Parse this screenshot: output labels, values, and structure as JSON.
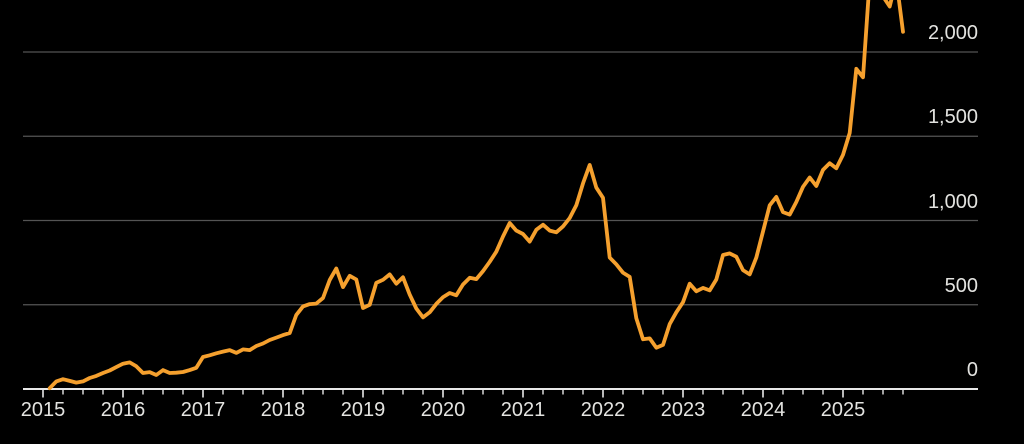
{
  "chart_data": {
    "type": "line",
    "title": "",
    "xlabel": "",
    "ylabel": "",
    "grid": "horizontal",
    "legend": "none",
    "axis_side": "right",
    "ylim": [
      0,
      2310
    ],
    "colors": {
      "background": "#000000",
      "line": "#f5a02e",
      "gridline": "#545454",
      "axis": "#e8e8e8",
      "text": "#e3e3e0"
    },
    "x_axis": {
      "year_labels": [
        "2015",
        "2016",
        "2017",
        "2018",
        "2019",
        "2020",
        "2021",
        "2022",
        "2023",
        "2024",
        "2025"
      ],
      "minor_ticks": "quarterly"
    },
    "y_axis": {
      "ticks": [
        {
          "value": 0,
          "label": "0"
        },
        {
          "value": 500,
          "label": "500"
        },
        {
          "value": 1000,
          "label": "1,000"
        },
        {
          "value": 1500,
          "label": "1,500"
        },
        {
          "value": 2000,
          "label": "2,000"
        }
      ]
    },
    "series": [
      {
        "name": "value",
        "points": [
          [
            "2015-02",
            5
          ],
          [
            "2015-03",
            45
          ],
          [
            "2015-04",
            58
          ],
          [
            "2015-05",
            48
          ],
          [
            "2015-06",
            38
          ],
          [
            "2015-07",
            45
          ],
          [
            "2015-08",
            65
          ],
          [
            "2015-09",
            78
          ],
          [
            "2015-10",
            95
          ],
          [
            "2015-11",
            110
          ],
          [
            "2015-12",
            130
          ],
          [
            "2016-01",
            150
          ],
          [
            "2016-02",
            158
          ],
          [
            "2016-03",
            135
          ],
          [
            "2016-04",
            95
          ],
          [
            "2016-05",
            100
          ],
          [
            "2016-06",
            83
          ],
          [
            "2016-07",
            112
          ],
          [
            "2016-08",
            95
          ],
          [
            "2016-09",
            97
          ],
          [
            "2016-10",
            101
          ],
          [
            "2016-11",
            112
          ],
          [
            "2016-12",
            126
          ],
          [
            "2017-01",
            190
          ],
          [
            "2017-02",
            200
          ],
          [
            "2017-03",
            212
          ],
          [
            "2017-04",
            222
          ],
          [
            "2017-05",
            231
          ],
          [
            "2017-06",
            214
          ],
          [
            "2017-07",
            235
          ],
          [
            "2017-08",
            231
          ],
          [
            "2017-09",
            255
          ],
          [
            "2017-10",
            270
          ],
          [
            "2017-11",
            291
          ],
          [
            "2017-12",
            305
          ],
          [
            "2018-01",
            320
          ],
          [
            "2018-02",
            332
          ],
          [
            "2018-03",
            440
          ],
          [
            "2018-04",
            490
          ],
          [
            "2018-05",
            504
          ],
          [
            "2018-06",
            507
          ],
          [
            "2018-07",
            540
          ],
          [
            "2018-08",
            647
          ],
          [
            "2018-09",
            715
          ],
          [
            "2018-10",
            605
          ],
          [
            "2018-11",
            672
          ],
          [
            "2018-12",
            650
          ],
          [
            "2019-01",
            481
          ],
          [
            "2019-02",
            500
          ],
          [
            "2019-03",
            630
          ],
          [
            "2019-04",
            648
          ],
          [
            "2019-05",
            680
          ],
          [
            "2019-06",
            625
          ],
          [
            "2019-07",
            663
          ],
          [
            "2019-08",
            560
          ],
          [
            "2019-09",
            478
          ],
          [
            "2019-10",
            425
          ],
          [
            "2019-11",
            455
          ],
          [
            "2019-12",
            505
          ],
          [
            "2020-01",
            545
          ],
          [
            "2020-02",
            570
          ],
          [
            "2020-03",
            556
          ],
          [
            "2020-04",
            620
          ],
          [
            "2020-05",
            660
          ],
          [
            "2020-06",
            652
          ],
          [
            "2020-07",
            700
          ],
          [
            "2020-08",
            755
          ],
          [
            "2020-09",
            815
          ],
          [
            "2020-10",
            905
          ],
          [
            "2020-11",
            985
          ],
          [
            "2020-12",
            940
          ],
          [
            "2021-01",
            920
          ],
          [
            "2021-02",
            875
          ],
          [
            "2021-03",
            945
          ],
          [
            "2021-04",
            975
          ],
          [
            "2021-05",
            940
          ],
          [
            "2021-06",
            930
          ],
          [
            "2021-07",
            965
          ],
          [
            "2021-08",
            1015
          ],
          [
            "2021-09",
            1090
          ],
          [
            "2021-10",
            1220
          ],
          [
            "2021-11",
            1330
          ],
          [
            "2021-12",
            1195
          ],
          [
            "2022-01",
            1135
          ],
          [
            "2022-02",
            780
          ],
          [
            "2022-03",
            740
          ],
          [
            "2022-04",
            690
          ],
          [
            "2022-05",
            665
          ],
          [
            "2022-06",
            420
          ],
          [
            "2022-07",
            295
          ],
          [
            "2022-08",
            300
          ],
          [
            "2022-09",
            245
          ],
          [
            "2022-10",
            262
          ],
          [
            "2022-11",
            385
          ],
          [
            "2022-12",
            455
          ],
          [
            "2023-01",
            515
          ],
          [
            "2023-02",
            625
          ],
          [
            "2023-03",
            580
          ],
          [
            "2023-04",
            600
          ],
          [
            "2023-05",
            585
          ],
          [
            "2023-06",
            650
          ],
          [
            "2023-07",
            795
          ],
          [
            "2023-08",
            805
          ],
          [
            "2023-09",
            785
          ],
          [
            "2023-10",
            705
          ],
          [
            "2023-11",
            680
          ],
          [
            "2023-12",
            780
          ],
          [
            "2024-01",
            935
          ],
          [
            "2024-02",
            1090
          ],
          [
            "2024-03",
            1140
          ],
          [
            "2024-04",
            1050
          ],
          [
            "2024-05",
            1035
          ],
          [
            "2024-06",
            1110
          ],
          [
            "2024-07",
            1200
          ],
          [
            "2024-08",
            1255
          ],
          [
            "2024-09",
            1205
          ],
          [
            "2024-10",
            1300
          ],
          [
            "2024-11",
            1340
          ],
          [
            "2024-12",
            1310
          ],
          [
            "2025-01",
            1390
          ],
          [
            "2025-02",
            1520
          ],
          [
            "2025-03",
            1900
          ],
          [
            "2025-04",
            1850
          ],
          [
            "2025-05",
            2430
          ],
          [
            "2025-06",
            2430
          ],
          [
            "2025-07",
            2330
          ],
          [
            "2025-08",
            2270
          ],
          [
            "2025-09",
            2430
          ],
          [
            "2025-10",
            2120
          ]
        ]
      }
    ]
  }
}
